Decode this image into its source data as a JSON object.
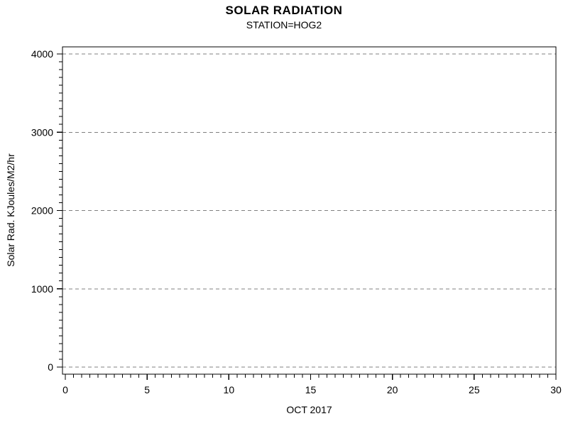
{
  "chart_data": {
    "type": "line",
    "title": "SOLAR RADIATION",
    "subtitle": "STATION=HOG2",
    "xlabel": "OCT 2017",
    "ylabel": "Solar Rad. KJoules/M2/hr",
    "xlim": [
      0,
      30
    ],
    "ylim": [
      0,
      4000
    ],
    "x_major_ticks": [
      0,
      5,
      10,
      15,
      20,
      25,
      30
    ],
    "y_major_ticks": [
      0,
      1000,
      2000,
      3000,
      4000
    ],
    "x_minor_interval": 0.5,
    "y_minor_interval": 100,
    "grid": "horizontal dashed gridlines at each y major tick",
    "legend": "none",
    "series": [],
    "colors": {
      "axis": "#000000",
      "grid": "#808080",
      "text": "#000000",
      "background": "#ffffff"
    }
  }
}
